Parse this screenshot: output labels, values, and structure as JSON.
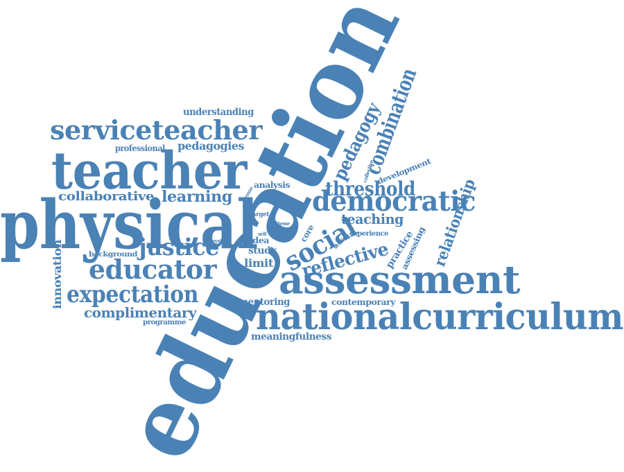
{
  "color": "#4a82b6",
  "words": {
    "education": "education",
    "physical": "physical",
    "teacher": "teacher",
    "serviceteacher": "serviceteacher",
    "nationalcurriculum": "nationalcurriculum",
    "assessment": "assessment",
    "democratic": "democratic",
    "educator": "educator",
    "expectation": "expectation",
    "justice": "justice",
    "social": "social",
    "reflective": "reflective",
    "threshold": "threshold",
    "combination": "combination",
    "pedagogy": "pedagogy",
    "complimentary": "complimentary",
    "learning": "learning",
    "collaborative": "collaborative",
    "relationship": "relationship",
    "teaching": "teaching",
    "innovation": "innovation",
    "pedagogies": "pedagogies",
    "understanding": "understanding",
    "professional": "professional",
    "mentoring": "mentoring",
    "contemporary": "contemporary",
    "meaningfulness": "meaningfulness",
    "limit": "limit",
    "study": "study",
    "idea": "idea",
    "practice": "practice",
    "assessing": "assessing",
    "development": "development",
    "analysis": "analysis",
    "experience": "experience",
    "programme": "programme",
    "background": "background",
    "core": "core",
    "target": "target",
    "theme": "theme",
    "system": "system",
    "self": "self",
    "setting": "setting",
    "collective": "collective",
    "sense": "sense",
    "class": "class"
  }
}
